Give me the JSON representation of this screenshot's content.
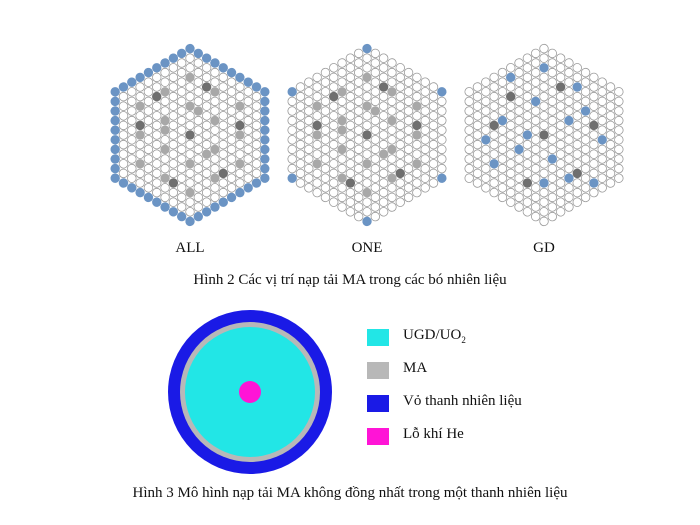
{
  "figure2": {
    "caption": "Hình 2 Các vị trí nạp tải MA trong các bó nhiên liệu",
    "assemblies": [
      {
        "label": "ALL"
      },
      {
        "label": "ONE"
      },
      {
        "label": "GD"
      }
    ]
  },
  "figure3": {
    "caption": "Hình 3 Mô hình nạp tải MA không đồng nhất trong một thanh nhiên liệu",
    "legend": [
      {
        "label_main": "UGD/UO",
        "label_sub": "2",
        "color": "#22e6e6"
      },
      {
        "label_main": "MA",
        "label_sub": "",
        "color": "#b8b8b8"
      },
      {
        "label_main": "Vỏ thanh nhiên liệu",
        "label_sub": "",
        "color": "#1a1ae6"
      },
      {
        "label_main": "Lỗ khí He",
        "label_sub": "",
        "color": "#ff14d6"
      }
    ]
  },
  "colors": {
    "blue_rod": "#6b94c4",
    "gray_rod": "#a8a8a8",
    "dark_rod": "#6f6f6f",
    "empty_rod_fill": "#ffffff",
    "empty_rod_stroke": "#9a9a9a"
  }
}
